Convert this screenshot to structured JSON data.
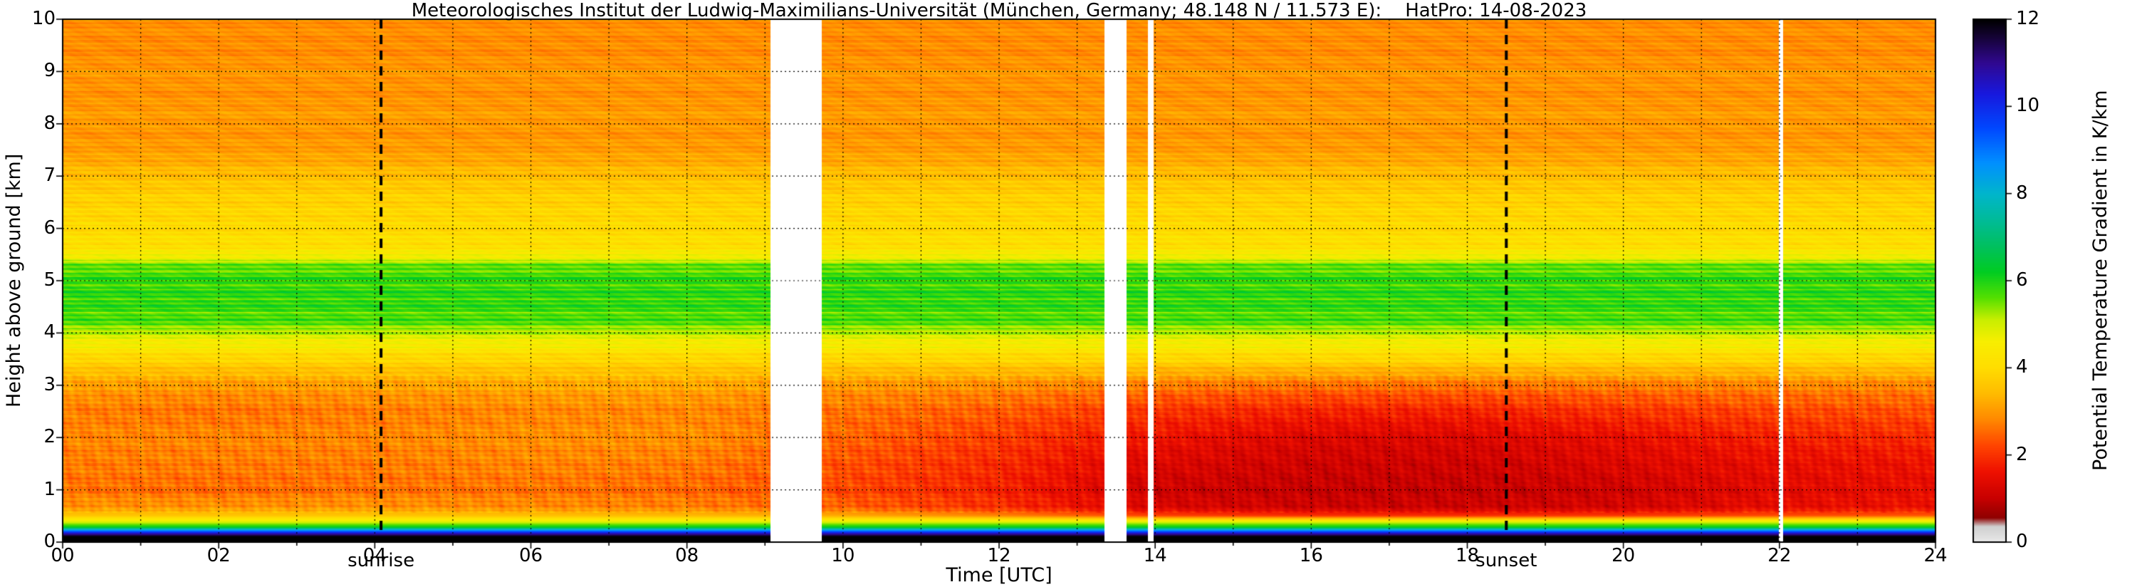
{
  "chart_data": {
    "type": "heatmap",
    "title": "Meteorologisches Institut der Ludwig-Maximilians-Universität (München, Germany; 48.148 N / 11.573 E):    HatPro: 14-08-2023",
    "xlabel": "Time [UTC]",
    "ylabel": "Height above ground [km]",
    "colorbar_label": "Potential Temperature Gradient in K/km",
    "xlim": [
      0,
      24
    ],
    "ylim": [
      0,
      10
    ],
    "clim": [
      0,
      12
    ],
    "grid_on": true,
    "x_ticks": {
      "values": [
        0,
        2,
        4,
        6,
        8,
        10,
        12,
        14,
        16,
        18,
        20,
        22,
        24
      ],
      "labels": [
        "00",
        "02",
        "04",
        "06",
        "08",
        "10",
        "12",
        "14",
        "16",
        "18",
        "20",
        "22",
        "24"
      ]
    },
    "y_ticks": {
      "values": [
        0,
        1,
        2,
        3,
        4,
        5,
        6,
        7,
        8,
        9,
        10
      ],
      "labels": [
        "0",
        "1",
        "2",
        "3",
        "4",
        "5",
        "6",
        "7",
        "8",
        "9",
        "10"
      ]
    },
    "colorbar_ticks": {
      "values": [
        0,
        2,
        4,
        6,
        8,
        10,
        12
      ],
      "labels": [
        "0",
        "2",
        "4",
        "6",
        "8",
        "10",
        "12"
      ]
    },
    "annotations": {
      "sunrise": {
        "time": 4.08,
        "label": "sunrise"
      },
      "sunset": {
        "time": 18.5,
        "label": "sunset"
      }
    },
    "data_gaps_utc": [
      [
        9.07,
        9.73
      ],
      [
        13.35,
        13.63
      ],
      [
        13.91,
        13.98
      ],
      [
        22.0,
        22.05
      ]
    ],
    "colormap_stops": [
      [
        0.0,
        "#e8e8e8"
      ],
      [
        0.35,
        "#cfcfcf"
      ],
      [
        0.55,
        "#8f0000"
      ],
      [
        1.0,
        "#c80000"
      ],
      [
        1.6,
        "#ee1000"
      ],
      [
        2.2,
        "#ff4400"
      ],
      [
        2.8,
        "#ff8800"
      ],
      [
        3.4,
        "#ffbb00"
      ],
      [
        4.0,
        "#ffdd00"
      ],
      [
        4.6,
        "#f8ee00"
      ],
      [
        5.1,
        "#c8ee00"
      ],
      [
        5.6,
        "#55e000"
      ],
      [
        6.2,
        "#00cc22"
      ],
      [
        6.8,
        "#00c060"
      ],
      [
        7.4,
        "#00bb99"
      ],
      [
        8.0,
        "#00b5cc"
      ],
      [
        8.7,
        "#0090ff"
      ],
      [
        9.5,
        "#0048ff"
      ],
      [
        10.3,
        "#1818dd"
      ],
      [
        11.0,
        "#300890"
      ],
      [
        11.6,
        "#150335"
      ],
      [
        12.0,
        "#000000"
      ]
    ],
    "grid": {
      "times": [
        0,
        2,
        4,
        6,
        8,
        10,
        12,
        14,
        16,
        18,
        20,
        22,
        24
      ],
      "heights": [
        0.0,
        0.1,
        0.16,
        0.22,
        0.28,
        0.38,
        0.5,
        0.65,
        1.0,
        1.5,
        2.0,
        2.5,
        3.0,
        3.5,
        3.95,
        4.15,
        4.6,
        5.1,
        5.3,
        5.45,
        5.6,
        6.0,
        6.6,
        7.0,
        7.4,
        7.8,
        8.2,
        8.6,
        9.0,
        9.4,
        10.0
      ],
      "values": [
        [
          12,
          12,
          12,
          12,
          12,
          12,
          12,
          12,
          12,
          12,
          12,
          12,
          12
        ],
        [
          12,
          12,
          12,
          12,
          12,
          12,
          12,
          12,
          12,
          12,
          12,
          12,
          12
        ],
        [
          10.6,
          10.6,
          10.6,
          10.6,
          10.6,
          10.6,
          10.6,
          10.6,
          10.6,
          10.6,
          10.6,
          10.6,
          10.6
        ],
        [
          8.6,
          8.6,
          8.6,
          8.6,
          8.6,
          8.6,
          8.6,
          8.6,
          8.6,
          8.6,
          8.6,
          8.6,
          8.6
        ],
        [
          6.2,
          6.2,
          6.2,
          6.2,
          6.2,
          6.2,
          6.2,
          6.2,
          6.2,
          6.2,
          6.2,
          6.2,
          6.2
        ],
        [
          4.9,
          4.9,
          4.9,
          4.9,
          4.9,
          4.9,
          4.9,
          4.9,
          4.9,
          4.9,
          4.9,
          4.9,
          4.9
        ],
        [
          3.6,
          3.6,
          3.6,
          3.5,
          3.4,
          3.2,
          2.8,
          2.2,
          2.0,
          2.0,
          2.1,
          2.3,
          2.4
        ],
        [
          3.0,
          3.0,
          3.0,
          2.9,
          2.8,
          2.5,
          2.0,
          1.3,
          1.1,
          1.1,
          1.2,
          1.5,
          1.6
        ],
        [
          2.6,
          2.5,
          2.6,
          2.6,
          2.5,
          2.2,
          1.8,
          1.1,
          1.0,
          1.0,
          1.1,
          1.4,
          1.5
        ],
        [
          2.7,
          2.7,
          2.7,
          2.8,
          2.7,
          2.3,
          1.9,
          1.3,
          1.1,
          1.1,
          1.3,
          1.5,
          1.6
        ],
        [
          2.8,
          2.8,
          2.8,
          2.9,
          2.9,
          2.5,
          2.1,
          1.6,
          1.3,
          1.3,
          1.5,
          1.8,
          1.9
        ],
        [
          2.7,
          2.6,
          2.7,
          2.8,
          2.8,
          2.6,
          2.4,
          2.0,
          1.8,
          1.8,
          2.0,
          2.2,
          2.3
        ],
        [
          3.1,
          3.0,
          3.1,
          3.2,
          3.2,
          3.0,
          2.9,
          2.7,
          2.6,
          2.6,
          2.7,
          2.8,
          2.8
        ],
        [
          3.9,
          3.9,
          3.9,
          3.9,
          3.9,
          3.9,
          3.9,
          3.9,
          3.9,
          3.9,
          3.9,
          3.9,
          3.9
        ],
        [
          4.9,
          4.9,
          4.9,
          4.9,
          4.9,
          4.9,
          4.9,
          4.9,
          4.9,
          4.9,
          4.9,
          4.9,
          4.9
        ],
        [
          5.6,
          5.6,
          5.6,
          5.6,
          5.6,
          5.6,
          5.6,
          5.6,
          5.6,
          5.6,
          5.6,
          5.6,
          5.6
        ],
        [
          5.9,
          5.9,
          5.9,
          5.9,
          5.9,
          5.9,
          5.9,
          5.9,
          5.9,
          5.9,
          5.9,
          5.9,
          5.9
        ],
        [
          5.8,
          5.8,
          5.8,
          5.8,
          5.8,
          5.8,
          5.8,
          5.8,
          5.8,
          5.8,
          5.8,
          5.8,
          5.8
        ],
        [
          5.5,
          5.5,
          5.5,
          5.5,
          5.5,
          5.5,
          5.5,
          5.5,
          5.5,
          5.5,
          5.5,
          5.5,
          5.5
        ],
        [
          4.7,
          4.7,
          4.7,
          4.7,
          4.7,
          4.7,
          4.7,
          4.7,
          4.7,
          4.7,
          4.7,
          4.7,
          4.7
        ],
        [
          4.2,
          4.2,
          4.2,
          4.2,
          4.2,
          4.2,
          4.2,
          4.2,
          4.2,
          4.2,
          4.2,
          4.2,
          4.2
        ],
        [
          4.0,
          4.0,
          4.0,
          4.0,
          4.0,
          4.0,
          4.0,
          4.0,
          4.0,
          4.0,
          4.0,
          4.0,
          4.0
        ],
        [
          3.8,
          3.8,
          3.8,
          3.8,
          3.8,
          3.8,
          3.8,
          3.8,
          3.8,
          3.8,
          3.8,
          3.8,
          3.8
        ],
        [
          3.5,
          3.5,
          3.5,
          3.5,
          3.5,
          3.5,
          3.5,
          3.5,
          3.5,
          3.5,
          3.5,
          3.5,
          3.5
        ],
        [
          3.1,
          3.1,
          3.1,
          3.1,
          3.1,
          3.1,
          3.1,
          3.1,
          3.1,
          3.1,
          3.1,
          3.1,
          3.1
        ],
        [
          2.95,
          2.95,
          2.95,
          2.95,
          2.95,
          2.95,
          2.95,
          2.95,
          2.95,
          2.95,
          2.95,
          2.95,
          2.95
        ],
        [
          3.05,
          3.05,
          3.05,
          3.05,
          3.05,
          3.05,
          3.05,
          3.05,
          3.05,
          3.05,
          3.05,
          3.05,
          3.05
        ],
        [
          2.9,
          2.9,
          2.9,
          2.9,
          2.9,
          2.9,
          2.9,
          2.9,
          2.9,
          2.9,
          2.9,
          2.9,
          2.9
        ],
        [
          3.0,
          3.0,
          3.0,
          3.0,
          3.0,
          3.0,
          3.0,
          3.0,
          3.0,
          3.0,
          3.0,
          3.0,
          3.0
        ],
        [
          2.85,
          2.85,
          2.85,
          2.85,
          2.85,
          2.85,
          2.85,
          2.85,
          2.85,
          2.85,
          2.85,
          2.85,
          2.85
        ],
        [
          2.9,
          2.9,
          2.9,
          2.9,
          2.9,
          2.9,
          2.9,
          2.9,
          2.9,
          2.9,
          2.9,
          2.9,
          2.9
        ]
      ]
    }
  }
}
